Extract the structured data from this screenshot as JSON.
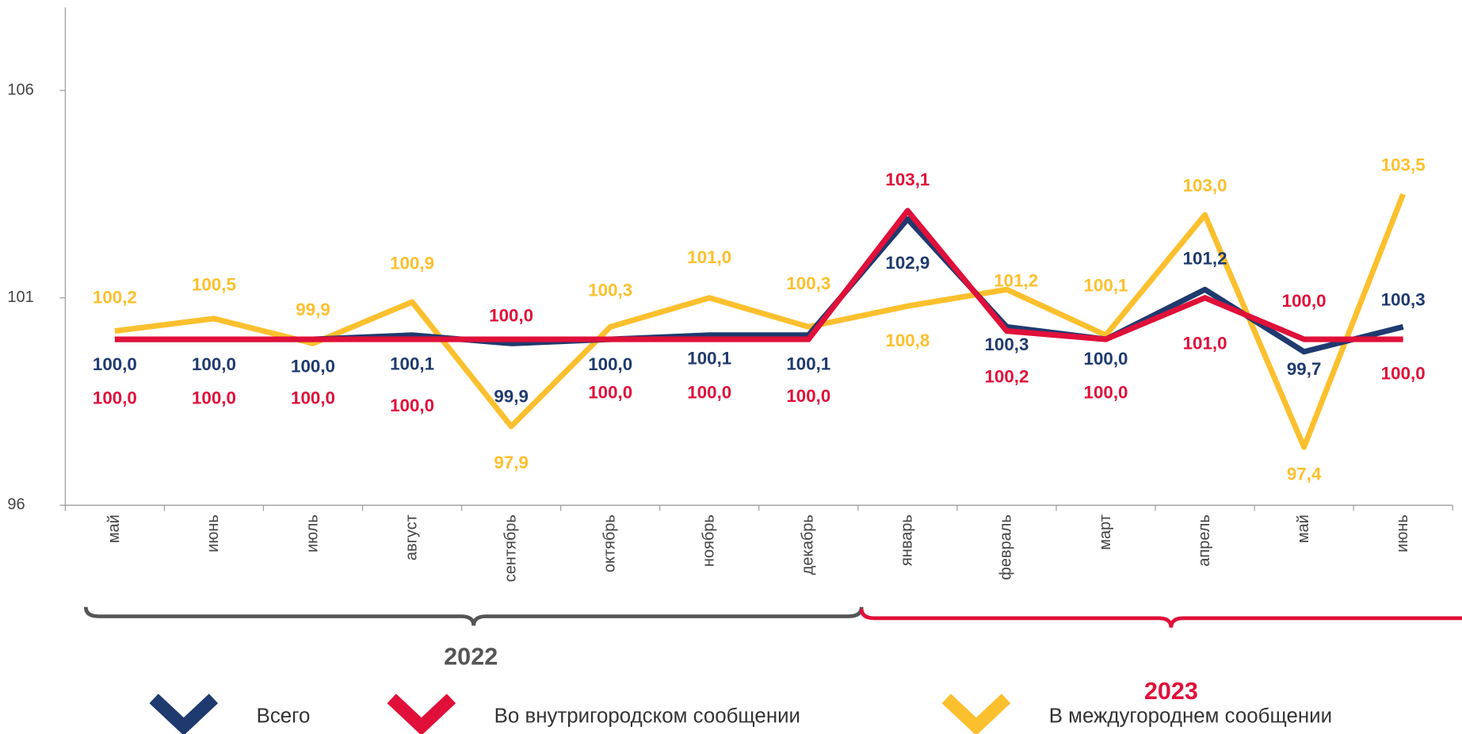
{
  "chart_data": {
    "type": "line",
    "categories": [
      "май",
      "июнь",
      "июль",
      "август",
      "сентябрь",
      "октябрь",
      "ноябрь",
      "декабрь",
      "январь",
      "февраль",
      "март",
      "апрель",
      "май",
      "июнь"
    ],
    "series": [
      {
        "name": "Всего",
        "color": "#1f3a6e",
        "values": [
          100.0,
          100.0,
          100.0,
          100.1,
          99.9,
          100.0,
          100.1,
          100.1,
          102.9,
          100.3,
          100.0,
          101.2,
          99.7,
          100.3
        ],
        "value_labels": [
          "100,0",
          "100,0",
          "100,0",
          "100,1",
          "99,9",
          "100,0",
          "100,1",
          "100,1",
          "102,9",
          "100,3",
          "100,0",
          "101,2",
          "99,7",
          "100,3"
        ]
      },
      {
        "name": "Во внутригородском сообщении",
        "color": "#e0103a",
        "values": [
          100.0,
          100.0,
          100.0,
          100.0,
          100.0,
          100.0,
          100.0,
          100.0,
          103.1,
          100.2,
          100.0,
          101.0,
          100.0,
          100.0
        ],
        "value_labels": [
          "100,0",
          "100,0",
          "100,0",
          "100,0",
          "100,0",
          "100,0",
          "100,0",
          "100,0",
          "103,1",
          "100,2",
          "100,0",
          "101,0",
          "100,0",
          "100,0"
        ]
      },
      {
        "name": "В междугороднем сообщении",
        "color": "#fcc02e",
        "values": [
          100.2,
          100.5,
          99.9,
          100.9,
          97.9,
          100.3,
          101.0,
          100.3,
          100.8,
          101.2,
          100.1,
          103.0,
          97.4,
          103.5
        ],
        "value_labels": [
          "100,2",
          "100,5",
          "99,9",
          "100,9",
          "97,9",
          "100,3",
          "101,0",
          "100,3",
          "100,8",
          "101,2",
          "100,1",
          "103,0",
          "97,4",
          "103,5"
        ]
      }
    ],
    "ylim": [
      96,
      108
    ],
    "yticks": [
      96,
      101,
      106
    ],
    "annotations": [
      "2022",
      "2023"
    ]
  }
}
